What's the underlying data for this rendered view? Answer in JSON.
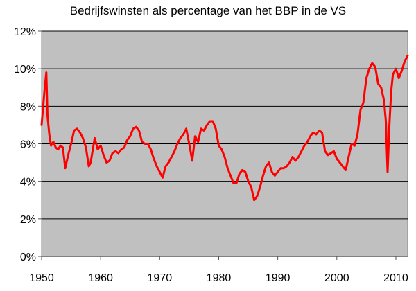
{
  "chart_data": {
    "type": "line",
    "title": "Bedrijfswinsten als percentage van het BBP in de VS",
    "xlabel": "",
    "ylabel": "",
    "xlim": [
      1950,
      2012
    ],
    "ylim": [
      0,
      12
    ],
    "x_ticks": [
      1950,
      1960,
      1970,
      1980,
      1990,
      2000,
      2010
    ],
    "x_tick_labels": [
      "1950",
      "1960",
      "1970",
      "1980",
      "1990",
      "2000",
      "2010"
    ],
    "y_ticks": [
      0,
      2,
      4,
      6,
      8,
      10,
      12
    ],
    "y_tick_labels": [
      "0%",
      "2%",
      "4%",
      "6%",
      "8%",
      "10%",
      "12%"
    ],
    "grid": "horizontal",
    "legend": "none",
    "plot_background": "#c0c0c0",
    "line_color": "#ff0000",
    "series": [
      {
        "x": [
          1950.0,
          1950.4,
          1950.8,
          1951.0,
          1951.3,
          1951.6,
          1952.0,
          1952.4,
          1952.8,
          1953.2,
          1953.6,
          1954.0,
          1954.5,
          1955.0,
          1955.5,
          1956.0,
          1956.5,
          1957.0,
          1957.5,
          1958.0,
          1958.3,
          1959.0,
          1959.5,
          1960.0,
          1960.5,
          1961.0,
          1961.5,
          1962.0,
          1962.5,
          1963.0,
          1963.5,
          1964.0,
          1964.5,
          1965.0,
          1965.5,
          1966.0,
          1966.5,
          1967.0,
          1967.5,
          1968.0,
          1968.5,
          1969.0,
          1969.5,
          1970.0,
          1970.5,
          1971.0,
          1971.5,
          1972.0,
          1972.5,
          1973.0,
          1973.5,
          1974.0,
          1974.5,
          1975.0,
          1975.5,
          1976.0,
          1976.5,
          1977.0,
          1977.5,
          1978.0,
          1978.5,
          1979.0,
          1979.5,
          1980.0,
          1980.5,
          1981.0,
          1981.5,
          1982.0,
          1982.5,
          1983.0,
          1983.5,
          1984.0,
          1984.5,
          1985.0,
          1985.5,
          1986.0,
          1986.5,
          1987.0,
          1987.5,
          1988.0,
          1988.5,
          1989.0,
          1989.5,
          1990.0,
          1990.5,
          1991.0,
          1991.5,
          1992.0,
          1992.5,
          1993.0,
          1993.5,
          1994.0,
          1994.5,
          1995.0,
          1995.5,
          1996.0,
          1996.5,
          1997.0,
          1997.5,
          1998.0,
          1998.5,
          1999.0,
          1999.5,
          2000.0,
          2000.5,
          2001.0,
          2001.5,
          2002.0,
          2002.5,
          2003.0,
          2003.5,
          2004.0,
          2004.5,
          2005.0,
          2005.5,
          2006.0,
          2006.5,
          2007.0,
          2007.5,
          2008.0,
          2008.3,
          2008.6,
          2008.9,
          2009.2,
          2009.5,
          2010.0,
          2010.5,
          2011.0,
          2011.5,
          2012.0
        ],
        "y": [
          7.0,
          8.5,
          9.8,
          7.5,
          6.5,
          5.9,
          6.1,
          5.8,
          5.7,
          5.9,
          5.8,
          4.7,
          5.4,
          6.0,
          6.7,
          6.8,
          6.6,
          6.3,
          5.8,
          4.8,
          5.0,
          6.3,
          5.7,
          5.9,
          5.4,
          5.0,
          5.1,
          5.5,
          5.6,
          5.5,
          5.7,
          5.8,
          6.2,
          6.4,
          6.8,
          6.9,
          6.7,
          6.1,
          6.0,
          6.0,
          5.7,
          5.2,
          4.8,
          4.5,
          4.2,
          4.8,
          5.0,
          5.3,
          5.6,
          6.0,
          6.3,
          6.5,
          6.8,
          6.0,
          5.1,
          6.4,
          6.1,
          6.8,
          6.7,
          7.0,
          7.2,
          7.2,
          6.8,
          5.9,
          5.7,
          5.3,
          4.7,
          4.3,
          3.9,
          3.9,
          4.4,
          4.6,
          4.5,
          4.0,
          3.7,
          3.0,
          3.2,
          3.7,
          4.3,
          4.8,
          5.0,
          4.5,
          4.3,
          4.5,
          4.7,
          4.7,
          4.8,
          5.0,
          5.3,
          5.1,
          5.3,
          5.6,
          5.9,
          6.1,
          6.4,
          6.6,
          6.5,
          6.7,
          6.6,
          5.6,
          5.4,
          5.5,
          5.6,
          5.2,
          5.0,
          4.8,
          4.6,
          5.3,
          6.0,
          5.9,
          6.5,
          7.8,
          8.2,
          9.5,
          10.0,
          10.3,
          10.1,
          9.2,
          9.0,
          8.3,
          7.2,
          4.5,
          7.0,
          8.8,
          9.7,
          10.0,
          9.5,
          9.9,
          10.4,
          10.7
        ]
      }
    ]
  }
}
